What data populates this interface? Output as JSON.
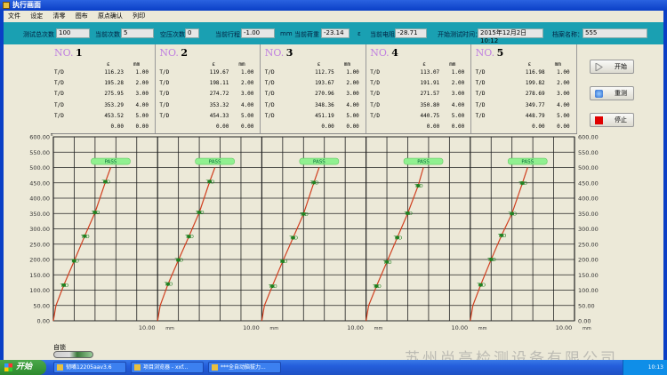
{
  "window": {
    "title": "执行画面"
  },
  "menu": [
    "文件",
    "设定",
    "清零",
    "图布",
    "原点确认",
    "列印"
  ],
  "params": {
    "total_tests_label": "测试总次数",
    "total_tests": "100",
    "current_count_label": "当前次数",
    "current_count": "5",
    "air_count_label": "空压次数",
    "air_count": "0",
    "stroke_label": "当前行程",
    "stroke": "-1.00",
    "stroke_unit": "mm",
    "load_label": "当前荷重",
    "load": "-23.14",
    "load_unit": "ε",
    "resistance_label": "当前电阻",
    "resistance": "-28.71",
    "start_time_label": "开始测试时间：",
    "start_time": "2015年12月2日10:12",
    "file_name_label": "档案名称：",
    "file_name": "555"
  },
  "cards": [
    {
      "no": "NO.",
      "num": "1",
      "col_e": "ε",
      "col_m": "mm",
      "rows": [
        [
          "T/D",
          "116.23",
          "1.00"
        ],
        [
          "T/D",
          "195.28",
          "2.00"
        ],
        [
          "T/D",
          "275.95",
          "3.00"
        ],
        [
          "T/D",
          "353.29",
          "4.00"
        ],
        [
          "T/D",
          "453.52",
          "5.00"
        ],
        [
          "",
          "0.00",
          "0.00"
        ]
      ]
    },
    {
      "no": "NO.",
      "num": "2",
      "col_e": "ε",
      "col_m": "mm",
      "rows": [
        [
          "T/D",
          "119.67",
          "1.00"
        ],
        [
          "T/D",
          "198.11",
          "2.00"
        ],
        [
          "T/D",
          "274.72",
          "3.00"
        ],
        [
          "T/D",
          "353.32",
          "4.00"
        ],
        [
          "T/D",
          "454.33",
          "5.00"
        ],
        [
          "",
          "0.00",
          "0.00"
        ]
      ]
    },
    {
      "no": "NO.",
      "num": "3",
      "col_e": "ε",
      "col_m": "mm",
      "rows": [
        [
          "T/D",
          "112.75",
          "1.00"
        ],
        [
          "T/D",
          "193.67",
          "2.00"
        ],
        [
          "T/D",
          "270.96",
          "3.00"
        ],
        [
          "T/D",
          "348.36",
          "4.00"
        ],
        [
          "T/D",
          "451.19",
          "5.00"
        ],
        [
          "",
          "0.00",
          "0.00"
        ]
      ]
    },
    {
      "no": "NO.",
      "num": "4",
      "col_e": "ε",
      "col_m": "mm",
      "rows": [
        [
          "T/D",
          "113.07",
          "1.00"
        ],
        [
          "T/D",
          "191.91",
          "2.00"
        ],
        [
          "T/D",
          "271.57",
          "3.00"
        ],
        [
          "T/D",
          "350.80",
          "4.00"
        ],
        [
          "T/D",
          "440.75",
          "5.00"
        ],
        [
          "",
          "0.00",
          "0.00"
        ]
      ]
    },
    {
      "no": "NO.",
      "num": "5",
      "col_e": "ε",
      "col_m": "mm",
      "rows": [
        [
          "T/D",
          "116.98",
          "1.00"
        ],
        [
          "T/D",
          "199.82",
          "2.00"
        ],
        [
          "T/D",
          "278.69",
          "3.00"
        ],
        [
          "T/D",
          "349.77",
          "4.00"
        ],
        [
          "T/D",
          "448.79",
          "5.00"
        ],
        [
          "",
          "0.00",
          "0.00"
        ]
      ]
    }
  ],
  "buttons": {
    "start": "开始",
    "retest": "重测",
    "stop": "停止"
  },
  "lock_label": "自锁",
  "chart_data": {
    "type": "line",
    "ylim": [
      0,
      600
    ],
    "y_ticks": [
      "0.00",
      "50.00",
      "100.00",
      "150.00",
      "200.00",
      "250.00",
      "300.00",
      "350.00",
      "400.00",
      "450.00",
      "500.00",
      "550.00",
      "600.00"
    ],
    "xlim_per_panel": [
      0,
      10
    ],
    "x_tick_label": "10.00",
    "x_unit": "mm",
    "y_unit": "ε",
    "point_label": "T/D",
    "pass_label": "PASS",
    "colors": {
      "curve": "#d04020",
      "point": "#208020",
      "pass": "#90f090"
    },
    "panels": [
      {
        "points": [
          [
            1,
            116.23
          ],
          [
            2,
            195.28
          ],
          [
            3,
            275.95
          ],
          [
            4,
            353.29
          ],
          [
            5,
            453.52
          ]
        ]
      },
      {
        "points": [
          [
            1,
            119.67
          ],
          [
            2,
            198.11
          ],
          [
            3,
            274.72
          ],
          [
            4,
            353.32
          ],
          [
            5,
            454.33
          ]
        ]
      },
      {
        "points": [
          [
            1,
            112.75
          ],
          [
            2,
            193.67
          ],
          [
            3,
            270.96
          ],
          [
            4,
            348.36
          ],
          [
            5,
            451.19
          ]
        ]
      },
      {
        "points": [
          [
            1,
            113.07
          ],
          [
            2,
            191.91
          ],
          [
            3,
            271.57
          ],
          [
            4,
            350.8
          ],
          [
            5,
            440.75
          ]
        ]
      },
      {
        "points": [
          [
            1,
            116.98
          ],
          [
            2,
            199.82
          ],
          [
            3,
            278.69
          ],
          [
            4,
            349.77
          ],
          [
            5,
            448.79
          ]
        ]
      }
    ]
  },
  "taskbar": {
    "start": "开始",
    "tasks": [
      "韧嘴12205aav3.6",
      "项目浏览器 - xxf...",
      "***全自动脑拔力..."
    ],
    "clock": "10:13"
  },
  "watermark": "苏州尚高检测设备有限公司"
}
